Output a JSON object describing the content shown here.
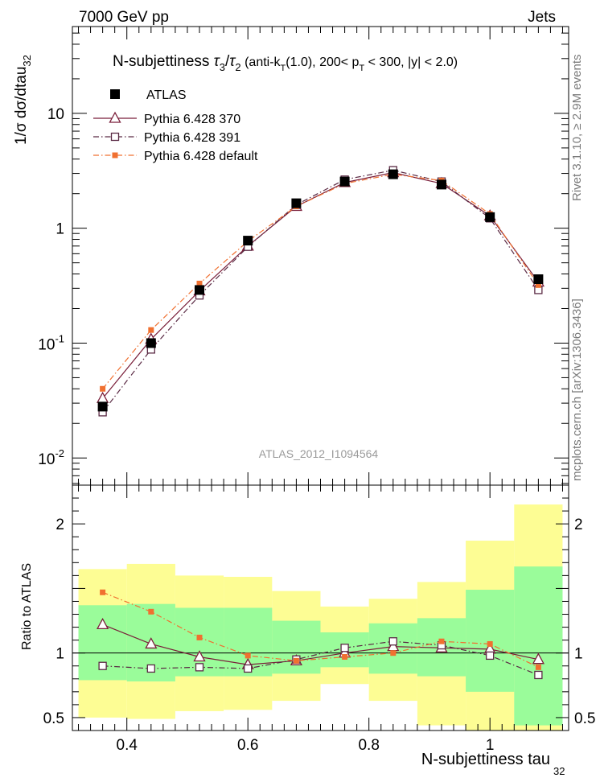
{
  "header": {
    "energy": "7000 GeV pp",
    "process": "Jets"
  },
  "side_labels": {
    "rivet": "Rivet 3.1.10, ≥ 2.9M events",
    "source": "mcplots.cern.ch [arXiv:1306.3436]"
  },
  "chart_data": [
    {
      "panel": "main",
      "type": "line",
      "y_scale": "log",
      "title": "N-subjettiness  τ3/τ2 (anti-kT(1.0), 200< pT < 300, |y| < 2.0)",
      "ylabel": "1/σ dσ/dtau32",
      "xlim": [
        0.31,
        1.13
      ],
      "ylim": [
        0.0058,
        57
      ],
      "y_ticks": [
        {
          "value": 0.01,
          "label": "10^-2"
        },
        {
          "value": 0.1,
          "label": "10^-1"
        },
        {
          "value": 1,
          "label": "1"
        },
        {
          "value": 10,
          "label": "10"
        }
      ],
      "watermark": "ATLAS_2012_I1094564",
      "x": [
        0.36,
        0.44,
        0.52,
        0.6,
        0.68,
        0.76,
        0.84,
        0.92,
        1.0,
        1.08
      ],
      "series": [
        {
          "name": "ATLAS",
          "color": "#000000",
          "marker": "filled-square",
          "values": [
            0.028,
            0.1,
            0.29,
            0.78,
            1.65,
            2.55,
            2.95,
            2.4,
            1.25,
            0.36
          ]
        },
        {
          "name": "Pythia 6.428 370",
          "color": "#7a1f3a",
          "marker": "open-triangle",
          "line": "solid",
          "values": [
            0.033,
            0.108,
            0.285,
            0.7,
            1.55,
            2.5,
            3.05,
            2.45,
            1.28,
            0.34
          ]
        },
        {
          "name": "Pythia 6.428 391",
          "color": "#5a2a44",
          "marker": "open-square",
          "line": "dash-dot",
          "values": [
            0.025,
            0.088,
            0.26,
            0.69,
            1.6,
            2.65,
            3.2,
            2.55,
            1.22,
            0.29
          ]
        },
        {
          "name": "Pythia 6.428 default",
          "color": "#f07030",
          "marker": "small-filled-square",
          "line": "dash-dot",
          "values": [
            0.04,
            0.13,
            0.33,
            0.77,
            1.55,
            2.45,
            2.95,
            2.6,
            1.33,
            0.32
          ]
        }
      ]
    },
    {
      "panel": "ratio",
      "type": "line",
      "ylabel": "Ratio to ATLAS",
      "xlabel": "N-subjettiness tau32",
      "xlim": [
        0.31,
        1.13
      ],
      "ylim": [
        0.4,
        2.3
      ],
      "x_ticks": [
        {
          "value": 0.4,
          "label": "0.4"
        },
        {
          "value": 0.6,
          "label": "0.6"
        },
        {
          "value": 0.8,
          "label": "0.8"
        },
        {
          "value": 1.0,
          "label": "1"
        }
      ],
      "y_ticks": [
        {
          "value": 0.5,
          "label": "0.5"
        },
        {
          "value": 1,
          "label": "1"
        },
        {
          "value": 2,
          "label": "2"
        }
      ],
      "bands": {
        "bin_edges": [
          0.32,
          0.4,
          0.48,
          0.56,
          0.64,
          0.72,
          0.8,
          0.88,
          0.96,
          1.04,
          1.12
        ],
        "inner": [
          [
            0.79,
            1.37
          ],
          [
            0.78,
            1.38
          ],
          [
            0.82,
            1.35
          ],
          [
            0.82,
            1.35
          ],
          [
            0.84,
            1.25
          ],
          [
            0.89,
            1.16
          ],
          [
            0.84,
            1.23
          ],
          [
            0.82,
            1.27
          ],
          [
            0.7,
            1.49
          ],
          [
            0.44,
            1.67
          ]
        ],
        "outer": [
          [
            0.5,
            1.65
          ],
          [
            0.49,
            1.69
          ],
          [
            0.55,
            1.6
          ],
          [
            0.56,
            1.59
          ],
          [
            0.63,
            1.48
          ],
          [
            0.76,
            1.36
          ],
          [
            0.63,
            1.42
          ],
          [
            0.44,
            1.55
          ],
          [
            0.35,
            1.87
          ],
          [
            0.35,
            2.15
          ]
        ],
        "inner_color": "#9afc9a",
        "outer_color": "#fdfd94"
      },
      "x": [
        0.36,
        0.44,
        0.52,
        0.6,
        0.68,
        0.76,
        0.84,
        0.92,
        1.0,
        1.08
      ],
      "series": [
        {
          "name": "Pythia 6.428 370",
          "color": "#7a1f3a",
          "marker": "open-triangle",
          "line": "solid",
          "values": [
            1.22,
            1.07,
            0.97,
            0.91,
            0.94,
            1.0,
            1.05,
            1.04,
            1.03,
            0.95
          ]
        },
        {
          "name": "Pythia 6.428 391",
          "color": "#5a2a44",
          "marker": "open-square",
          "line": "dash-dot",
          "values": [
            0.9,
            0.88,
            0.89,
            0.88,
            0.95,
            1.04,
            1.09,
            1.06,
            0.98,
            0.83
          ]
        },
        {
          "name": "Pythia 6.428 default",
          "color": "#f07030",
          "marker": "small-filled-square",
          "line": "dash-dot",
          "values": [
            1.47,
            1.32,
            1.12,
            0.98,
            0.94,
            0.97,
            1.0,
            1.09,
            1.07,
            0.89
          ]
        }
      ]
    }
  ]
}
